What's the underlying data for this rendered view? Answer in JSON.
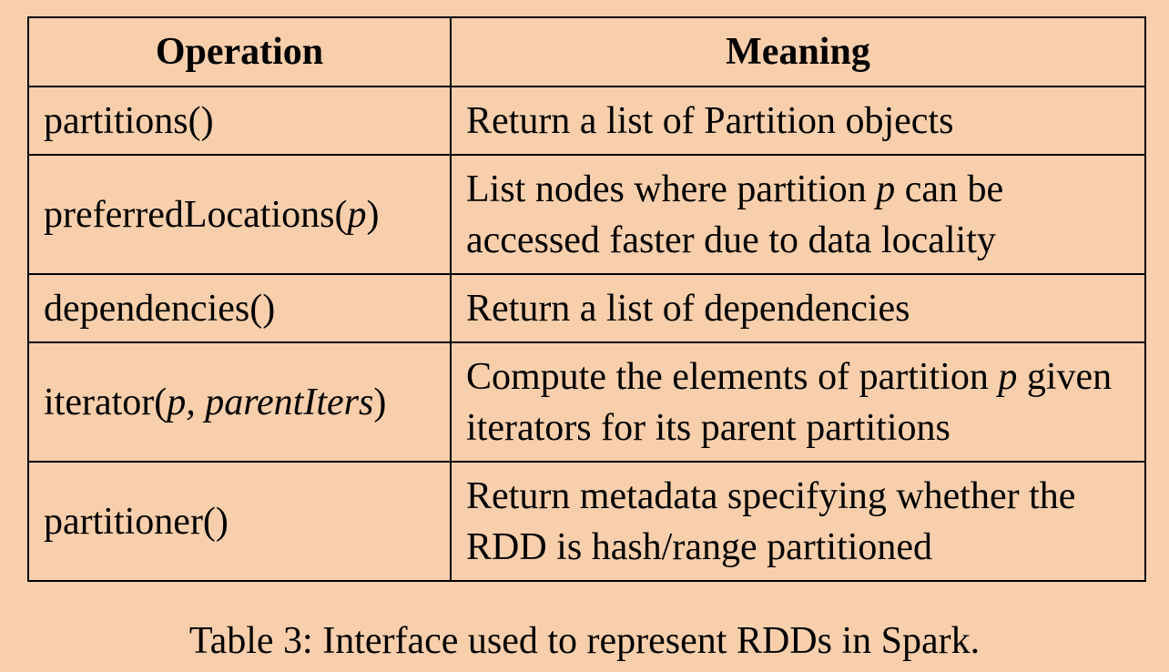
{
  "table": {
    "headers": {
      "operation": "Operation",
      "meaning": "Meaning"
    },
    "rows": [
      {
        "operation": [
          {
            "text": "partitions()",
            "italic": false
          }
        ],
        "meaning": [
          {
            "text": "Return a list of Partition objects",
            "italic": false
          }
        ]
      },
      {
        "operation": [
          {
            "text": "preferredLocations(",
            "italic": false
          },
          {
            "text": "p",
            "italic": true
          },
          {
            "text": ")",
            "italic": false
          }
        ],
        "meaning": [
          {
            "text": "List nodes where partition ",
            "italic": false
          },
          {
            "text": "p",
            "italic": true
          },
          {
            "text": " can be accessed faster due to data locality",
            "italic": false
          }
        ]
      },
      {
        "operation": [
          {
            "text": "dependencies()",
            "italic": false
          }
        ],
        "meaning": [
          {
            "text": "Return a list of dependencies",
            "italic": false
          }
        ]
      },
      {
        "operation": [
          {
            "text": "iterator(",
            "italic": false
          },
          {
            "text": "p, parentIters",
            "italic": true
          },
          {
            "text": ")",
            "italic": false
          }
        ],
        "meaning": [
          {
            "text": "Compute the elements of partition ",
            "italic": false
          },
          {
            "text": "p",
            "italic": true
          },
          {
            "text": " given iterators for its parent partitions",
            "italic": false
          }
        ]
      },
      {
        "operation": [
          {
            "text": "partitioner()",
            "italic": false
          }
        ],
        "meaning": [
          {
            "text": "Return metadata specifying whether the RDD is hash/range partitioned",
            "italic": false
          }
        ]
      }
    ]
  },
  "caption": "Table 3: Interface used to represent RDDs in Spark.",
  "colors": {
    "background": "#f8cfac",
    "border": "#000000",
    "text": "#000000"
  }
}
